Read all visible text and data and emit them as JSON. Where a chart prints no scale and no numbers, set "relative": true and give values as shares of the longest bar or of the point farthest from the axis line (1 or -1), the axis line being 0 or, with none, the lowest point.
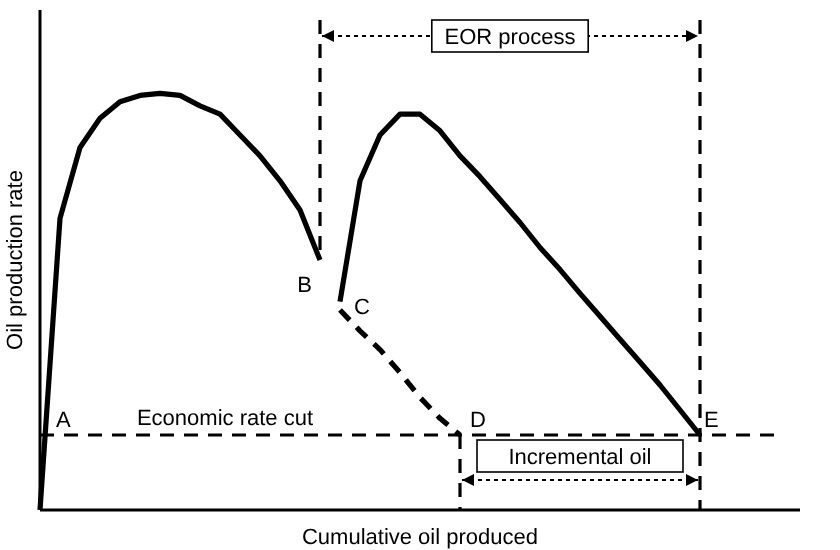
{
  "chart_data": {
    "type": "line",
    "relative": true,
    "xlabel": "Cumulative oil produced",
    "ylabel": "Oil production rate",
    "categories": [
      null,
      null,
      null,
      null,
      null,
      null,
      null,
      null,
      null,
      null,
      null,
      null,
      null,
      null,
      null,
      null,
      null,
      null,
      null,
      null,
      null,
      null,
      null,
      null,
      null,
      null,
      null,
      null,
      null,
      null,
      null,
      null,
      null,
      null,
      null,
      null,
      null,
      null,
      null
    ],
    "series": [
      {
        "color": "#000000",
        "line_style": "solid",
        "values": [
          0,
          0.7,
          0.87,
          0.94,
          0.98,
          0.995,
          1,
          0.995,
          0.97,
          0.95,
          0.9,
          0.85,
          0.79,
          0.72,
          0.6,
          null,
          null,
          null,
          null,
          null,
          null,
          null,
          null,
          null,
          null,
          null,
          null,
          null,
          null,
          null,
          null,
          null,
          null,
          null,
          null,
          null,
          null,
          null,
          null
        ]
      },
      {
        "color": "#000000",
        "line_style": "dashed",
        "values": [
          null,
          null,
          null,
          null,
          null,
          null,
          null,
          null,
          null,
          null,
          null,
          null,
          null,
          null,
          null,
          0.48,
          0.43,
          0.385,
          0.33,
          0.27,
          0.22,
          0.18,
          null,
          null,
          null,
          null,
          null,
          null,
          null,
          null,
          null,
          null,
          null,
          null,
          null,
          null,
          null,
          null,
          null
        ]
      },
      {
        "color": "#000000",
        "line_style": "solid",
        "values": [
          null,
          null,
          null,
          null,
          null,
          null,
          null,
          null,
          null,
          null,
          null,
          null,
          null,
          null,
          null,
          0.5,
          0.79,
          0.9,
          0.95,
          0.95,
          0.91,
          0.85,
          0.8,
          0.745,
          0.69,
          0.63,
          0.577,
          0.52,
          0.465,
          0.41,
          0.355,
          0.3,
          0.24,
          0.18,
          null,
          null,
          null,
          null,
          null
        ]
      }
    ],
    "ref_lines": [
      {
        "axis": "y",
        "value": 0.18,
        "label": "Economic rate cut",
        "line_style": "dashed"
      }
    ],
    "annotations": [
      "A",
      "B",
      "C",
      "D",
      "E",
      "EOR process",
      "Incremental oil"
    ]
  }
}
